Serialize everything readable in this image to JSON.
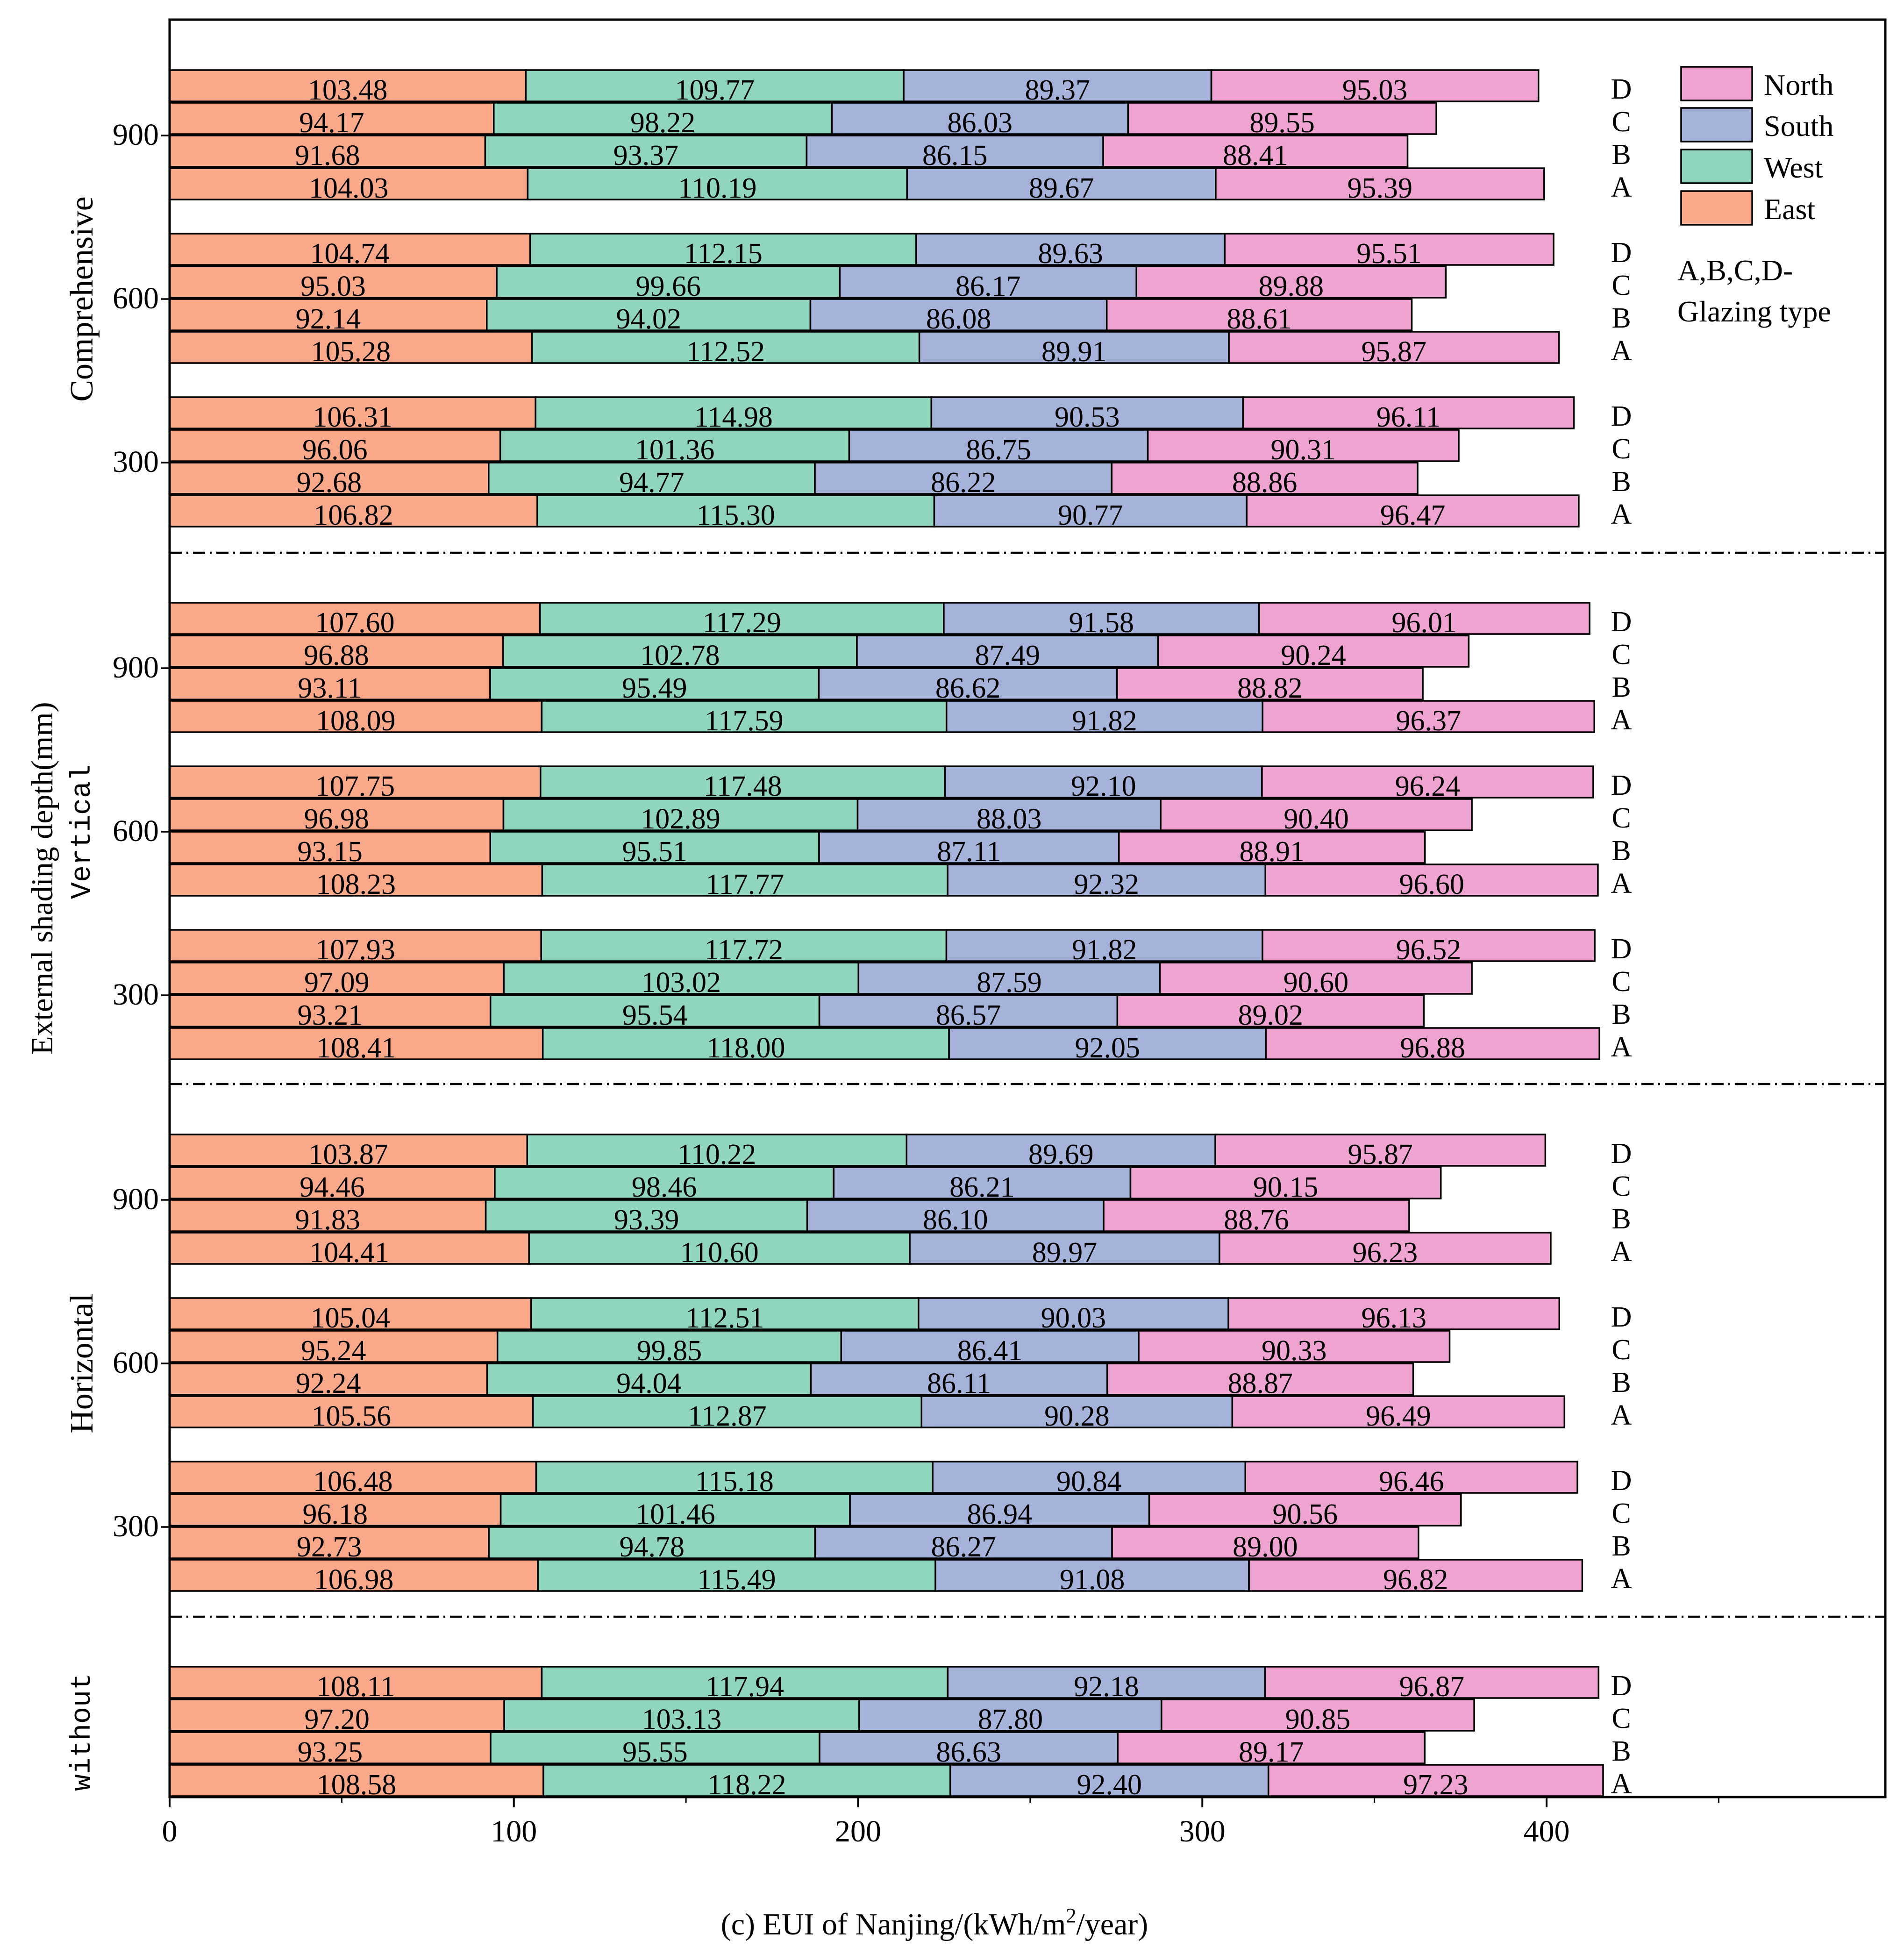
{
  "chart_data": {
    "type": "bar",
    "orientation": "horizontal",
    "stacked": true,
    "xlabel": "(c) EUI of Nanjing/(kWh/m²/year)",
    "xlabel_parts": {
      "main": "(c) EUI of Nanjing/(kWh/m",
      "sup": "2",
      "tail": "/year)"
    },
    "ylabel": "External shading depth(mm)",
    "xlim": [
      0,
      500
    ],
    "xticks": [
      0,
      100,
      200,
      300,
      400
    ],
    "grid": false,
    "legend_position": "top-right",
    "legend_note": [
      "A,B,C,D-",
      "Glazing type"
    ],
    "series": [
      {
        "name": "East",
        "color": "#F9A88A"
      },
      {
        "name": "West",
        "color": "#90D5BE"
      },
      {
        "name": "South",
        "color": "#A5B3DA"
      },
      {
        "name": "North",
        "color": "#EEA3D0"
      }
    ],
    "legend_order": [
      "North",
      "South",
      "West",
      "East"
    ],
    "sections": [
      {
        "label": "Comprehensive",
        "label_style": "serif",
        "groups": [
          {
            "depth": "900",
            "bars": [
              {
                "glazing": "D",
                "values": [
                  103.48,
                  109.77,
                  89.37,
                  95.03
                ]
              },
              {
                "glazing": "C",
                "values": [
                  94.17,
                  98.22,
                  86.03,
                  89.55
                ]
              },
              {
                "glazing": "B",
                "values": [
                  91.68,
                  93.37,
                  86.15,
                  88.41
                ]
              },
              {
                "glazing": "A",
                "values": [
                  104.03,
                  110.19,
                  89.67,
                  95.39
                ]
              }
            ]
          },
          {
            "depth": "600",
            "bars": [
              {
                "glazing": "D",
                "values": [
                  104.74,
                  112.15,
                  89.63,
                  95.51
                ]
              },
              {
                "glazing": "C",
                "values": [
                  95.03,
                  99.66,
                  86.17,
                  89.88
                ]
              },
              {
                "glazing": "B",
                "values": [
                  92.14,
                  94.02,
                  86.08,
                  88.61
                ]
              },
              {
                "glazing": "A",
                "values": [
                  105.28,
                  112.52,
                  89.91,
                  95.87
                ]
              }
            ]
          },
          {
            "depth": "300",
            "bars": [
              {
                "glazing": "D",
                "values": [
                  106.31,
                  114.98,
                  90.53,
                  96.11
                ]
              },
              {
                "glazing": "C",
                "values": [
                  96.06,
                  101.36,
                  86.75,
                  90.31
                ]
              },
              {
                "glazing": "B",
                "values": [
                  92.68,
                  94.77,
                  86.22,
                  88.86
                ]
              },
              {
                "glazing": "A",
                "values": [
                  106.82,
                  115.3,
                  90.77,
                  96.47
                ]
              }
            ]
          }
        ]
      },
      {
        "label": "Vertical",
        "label_style": "mono",
        "groups": [
          {
            "depth": "900",
            "bars": [
              {
                "glazing": "D",
                "values": [
                  107.6,
                  117.29,
                  91.58,
                  96.01
                ]
              },
              {
                "glazing": "C",
                "values": [
                  96.88,
                  102.78,
                  87.49,
                  90.24
                ]
              },
              {
                "glazing": "B",
                "values": [
                  93.11,
                  95.49,
                  86.62,
                  88.82
                ]
              },
              {
                "glazing": "A",
                "values": [
                  108.09,
                  117.59,
                  91.82,
                  96.37
                ]
              }
            ]
          },
          {
            "depth": "600",
            "bars": [
              {
                "glazing": "D",
                "values": [
                  107.75,
                  117.48,
                  92.1,
                  96.24
                ]
              },
              {
                "glazing": "C",
                "values": [
                  96.98,
                  102.89,
                  88.03,
                  90.4
                ]
              },
              {
                "glazing": "B",
                "values": [
                  93.15,
                  95.51,
                  87.11,
                  88.91
                ]
              },
              {
                "glazing": "A",
                "values": [
                  108.23,
                  117.77,
                  92.32,
                  96.6
                ]
              }
            ]
          },
          {
            "depth": "300",
            "bars": [
              {
                "glazing": "D",
                "values": [
                  107.93,
                  117.72,
                  91.82,
                  96.52
                ]
              },
              {
                "glazing": "C",
                "values": [
                  97.09,
                  103.02,
                  87.59,
                  90.6
                ]
              },
              {
                "glazing": "B",
                "values": [
                  93.21,
                  95.54,
                  86.57,
                  89.02
                ]
              },
              {
                "glazing": "A",
                "values": [
                  108.41,
                  118.0,
                  92.05,
                  96.88
                ]
              }
            ]
          }
        ]
      },
      {
        "label": "Horizontal",
        "label_style": "serif",
        "groups": [
          {
            "depth": "900",
            "bars": [
              {
                "glazing": "D",
                "values": [
                  103.87,
                  110.22,
                  89.69,
                  95.87
                ]
              },
              {
                "glazing": "C",
                "values": [
                  94.46,
                  98.46,
                  86.21,
                  90.15
                ]
              },
              {
                "glazing": "B",
                "values": [
                  91.83,
                  93.39,
                  86.1,
                  88.76
                ]
              },
              {
                "glazing": "A",
                "values": [
                  104.41,
                  110.6,
                  89.97,
                  96.23
                ]
              }
            ]
          },
          {
            "depth": "600",
            "bars": [
              {
                "glazing": "D",
                "values": [
                  105.04,
                  112.51,
                  90.03,
                  96.13
                ]
              },
              {
                "glazing": "C",
                "values": [
                  95.24,
                  99.85,
                  86.41,
                  90.33
                ]
              },
              {
                "glazing": "B",
                "values": [
                  92.24,
                  94.04,
                  86.11,
                  88.87
                ]
              },
              {
                "glazing": "A",
                "values": [
                  105.56,
                  112.87,
                  90.28,
                  96.49
                ]
              }
            ]
          },
          {
            "depth": "300",
            "bars": [
              {
                "glazing": "D",
                "values": [
                  106.48,
                  115.18,
                  90.84,
                  96.46
                ]
              },
              {
                "glazing": "C",
                "values": [
                  96.18,
                  101.46,
                  86.94,
                  90.56
                ]
              },
              {
                "glazing": "B",
                "values": [
                  92.73,
                  94.78,
                  86.27,
                  89.0
                ]
              },
              {
                "glazing": "A",
                "values": [
                  106.98,
                  115.49,
                  91.08,
                  96.82
                ]
              }
            ]
          }
        ]
      },
      {
        "label": "without",
        "label_style": "mono",
        "groups": [
          {
            "depth": "",
            "bars": [
              {
                "glazing": "D",
                "values": [
                  108.11,
                  117.94,
                  92.18,
                  96.87
                ]
              },
              {
                "glazing": "C",
                "values": [
                  97.2,
                  103.13,
                  87.8,
                  90.85
                ]
              },
              {
                "glazing": "B",
                "values": [
                  93.25,
                  95.55,
                  86.63,
                  89.17
                ]
              },
              {
                "glazing": "A",
                "values": [
                  108.58,
                  118.22,
                  92.4,
                  97.23
                ]
              }
            ]
          }
        ]
      }
    ]
  }
}
